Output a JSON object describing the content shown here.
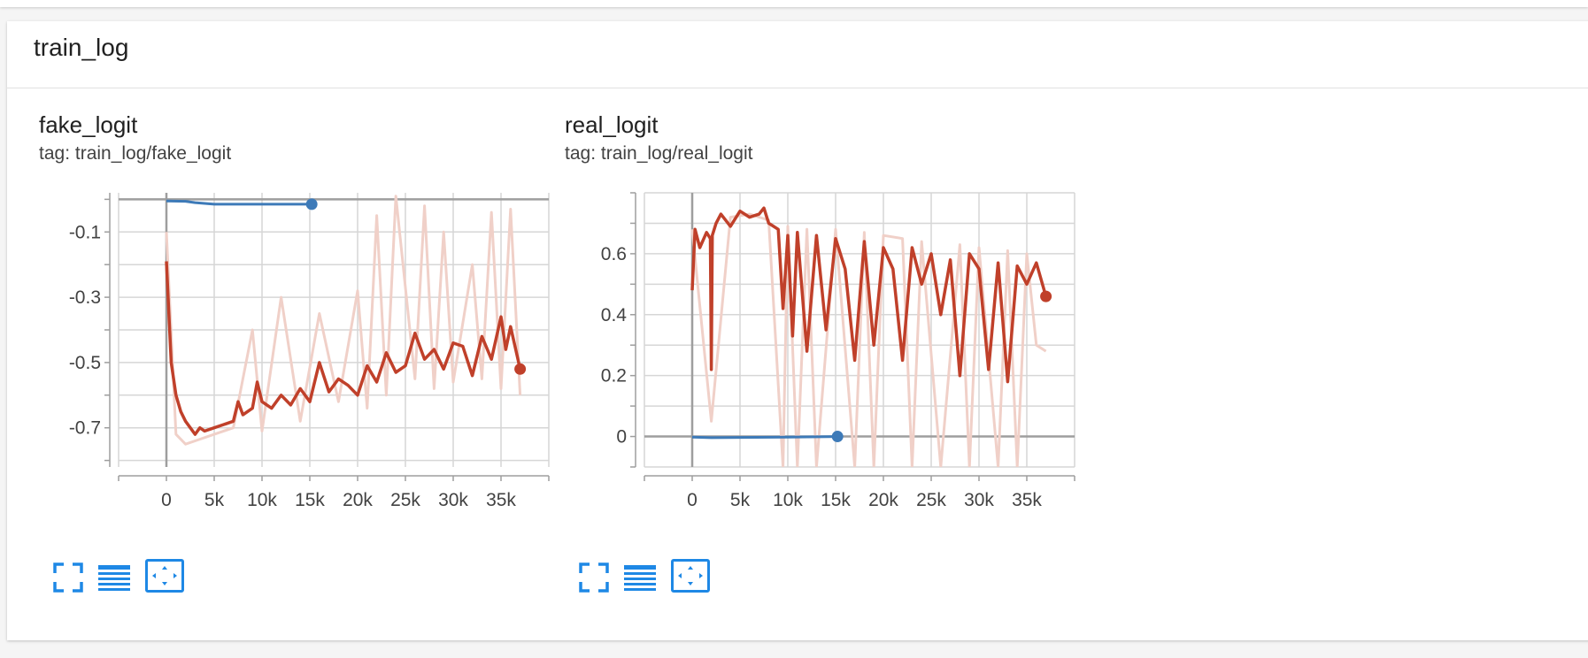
{
  "panel": {
    "title": "train_log"
  },
  "colors": {
    "smoothed": "#c0402a",
    "raw": "#f0d0c8",
    "relative": "#3d7ab8",
    "grid": "#d6d6d6",
    "axis": "#9e9e9e",
    "accent": "#1e88e5"
  },
  "toolbar_icons": [
    "fullscreen-icon",
    "data-table-icon",
    "fit-domain-icon"
  ],
  "charts": [
    {
      "title": "fake_logit",
      "tag": "tag: train_log/fake_logit"
    },
    {
      "title": "real_logit",
      "tag": "tag: train_log/real_logit"
    }
  ],
  "chart_data": [
    {
      "type": "line",
      "title": "fake_logit",
      "xlabel": "",
      "ylabel": "",
      "xlim": [
        -5000,
        40000
      ],
      "ylim": [
        -0.82,
        0.02
      ],
      "x_ticks": [
        0,
        5000,
        10000,
        15000,
        20000,
        25000,
        30000,
        35000
      ],
      "x_tick_labels": [
        "0",
        "5k",
        "10k",
        "15k",
        "20k",
        "25k",
        "30k",
        "35k"
      ],
      "y_ticks": [
        -0.1,
        -0.3,
        -0.5,
        -0.7
      ],
      "y_tick_labels": [
        "-0.1",
        "-0.3",
        "-0.5",
        "-0.7"
      ],
      "grid": true,
      "series": [
        {
          "role": "smoothed",
          "x": [
            0,
            500,
            1000,
            1500,
            2000,
            2500,
            3000,
            3500,
            4000,
            5000,
            6000,
            7000,
            7500,
            8000,
            9000,
            9500,
            10000,
            11000,
            12000,
            13000,
            14000,
            15000,
            16000,
            17000,
            18000,
            19000,
            20000,
            21000,
            22000,
            23000,
            24000,
            25000,
            26000,
            27000,
            28000,
            29000,
            30000,
            31000,
            32000,
            33000,
            34000,
            35000,
            35500,
            36000,
            37000
          ],
          "y": [
            -0.19,
            -0.5,
            -0.6,
            -0.65,
            -0.68,
            -0.7,
            -0.72,
            -0.7,
            -0.71,
            -0.7,
            -0.69,
            -0.68,
            -0.62,
            -0.66,
            -0.64,
            -0.56,
            -0.62,
            -0.64,
            -0.6,
            -0.63,
            -0.58,
            -0.62,
            -0.5,
            -0.59,
            -0.55,
            -0.57,
            -0.6,
            -0.51,
            -0.56,
            -0.47,
            -0.53,
            -0.51,
            -0.41,
            -0.49,
            -0.46,
            -0.52,
            -0.44,
            -0.45,
            -0.54,
            -0.42,
            -0.49,
            -0.36,
            -0.46,
            -0.39,
            -0.52
          ]
        },
        {
          "role": "raw",
          "x": [
            0,
            1000,
            2000,
            3000,
            5000,
            7000,
            9000,
            10000,
            12000,
            14000,
            16000,
            18000,
            20000,
            21000,
            22000,
            23000,
            24000,
            26000,
            27000,
            28000,
            29000,
            30000,
            32000,
            33000,
            34000,
            35000,
            36000,
            37000
          ],
          "y": [
            -0.1,
            -0.72,
            -0.75,
            -0.74,
            -0.72,
            -0.7,
            -0.4,
            -0.71,
            -0.3,
            -0.68,
            -0.35,
            -0.62,
            -0.28,
            -0.64,
            -0.05,
            -0.6,
            0.01,
            -0.55,
            -0.02,
            -0.58,
            -0.1,
            -0.56,
            -0.2,
            -0.55,
            -0.04,
            -0.58,
            -0.03,
            -0.6
          ]
        },
        {
          "role": "relative",
          "x": [
            0,
            2000,
            3000,
            5000,
            10000,
            15200
          ],
          "y": [
            -0.005,
            -0.006,
            -0.01,
            -0.015,
            -0.015,
            -0.015
          ]
        }
      ],
      "end_markers": [
        {
          "series": "smoothed",
          "x": 37000,
          "y": -0.52
        },
        {
          "series": "relative",
          "x": 15200,
          "y": -0.015
        }
      ]
    },
    {
      "type": "line",
      "title": "real_logit",
      "xlabel": "",
      "ylabel": "",
      "xlim": [
        -5000,
        40000
      ],
      "ylim": [
        -0.1,
        0.8
      ],
      "x_ticks": [
        0,
        5000,
        10000,
        15000,
        20000,
        25000,
        30000,
        35000
      ],
      "x_tick_labels": [
        "0",
        "5k",
        "10k",
        "15k",
        "20k",
        "25k",
        "30k",
        "35k"
      ],
      "y_ticks": [
        0,
        0.2,
        0.4,
        0.6
      ],
      "y_tick_labels": [
        "0",
        "0.2",
        "0.4",
        "0.6"
      ],
      "grid": true,
      "series": [
        {
          "role": "smoothed",
          "x": [
            0,
            300,
            800,
            1500,
            1900,
            2000,
            2100,
            2500,
            3000,
            4000,
            5000,
            6000,
            7000,
            7500,
            8000,
            9000,
            9500,
            10000,
            10500,
            11000,
            12000,
            13000,
            14000,
            15000,
            16000,
            17000,
            18000,
            19000,
            20000,
            21000,
            22000,
            23000,
            24000,
            25000,
            26000,
            27000,
            28000,
            29000,
            30000,
            31000,
            32000,
            33000,
            34000,
            35000,
            36000,
            37000
          ],
          "y": [
            0.48,
            0.68,
            0.62,
            0.67,
            0.65,
            0.22,
            0.66,
            0.7,
            0.73,
            0.69,
            0.74,
            0.72,
            0.73,
            0.75,
            0.7,
            0.68,
            0.42,
            0.66,
            0.33,
            0.67,
            0.28,
            0.66,
            0.35,
            0.65,
            0.55,
            0.25,
            0.64,
            0.3,
            0.62,
            0.55,
            0.25,
            0.62,
            0.5,
            0.6,
            0.4,
            0.58,
            0.2,
            0.6,
            0.55,
            0.22,
            0.57,
            0.18,
            0.56,
            0.5,
            0.57,
            0.46
          ]
        },
        {
          "role": "raw",
          "x": [
            0,
            2000,
            4000,
            6000,
            8000,
            9500,
            10000,
            11000,
            12000,
            13000,
            15000,
            17000,
            18000,
            19000,
            20000,
            22000,
            23000,
            24000,
            26000,
            28000,
            29000,
            30000,
            32000,
            33000,
            34000,
            35000,
            36000,
            37000
          ],
          "y": [
            0.68,
            0.05,
            0.72,
            0.73,
            0.71,
            -0.1,
            0.69,
            -0.1,
            0.68,
            -0.1,
            0.68,
            -0.1,
            0.67,
            -0.1,
            0.66,
            0.65,
            -0.1,
            0.64,
            -0.1,
            0.63,
            -0.1,
            0.62,
            -0.1,
            0.61,
            -0.1,
            0.6,
            0.3,
            0.28
          ]
        },
        {
          "role": "relative",
          "x": [
            0,
            2000,
            5000,
            10000,
            15200
          ],
          "y": [
            -0.002,
            -0.004,
            -0.003,
            -0.002,
            0.0
          ]
        }
      ],
      "end_markers": [
        {
          "series": "smoothed",
          "x": 37000,
          "y": 0.46
        },
        {
          "series": "relative",
          "x": 15200,
          "y": 0.0
        }
      ]
    }
  ]
}
